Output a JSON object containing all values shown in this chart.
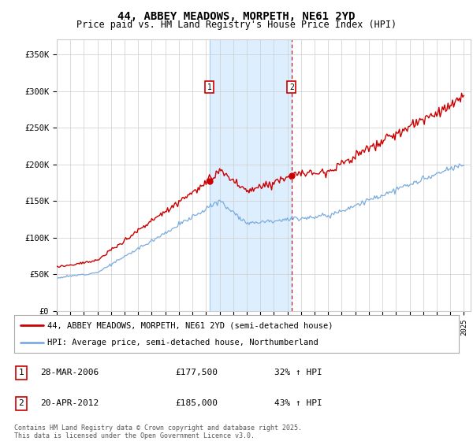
{
  "title": "44, ABBEY MEADOWS, MORPETH, NE61 2YD",
  "subtitle": "Price paid vs. HM Land Registry's House Price Index (HPI)",
  "legend_line1": "44, ABBEY MEADOWS, MORPETH, NE61 2YD (semi-detached house)",
  "legend_line2": "HPI: Average price, semi-detached house, Northumberland",
  "transaction1": {
    "num": "1",
    "date": "28-MAR-2006",
    "price": "£177,500",
    "change": "32% ↑ HPI"
  },
  "transaction2": {
    "num": "2",
    "date": "20-APR-2012",
    "price": "£185,000",
    "change": "43% ↑ HPI"
  },
  "footer": "Contains HM Land Registry data © Crown copyright and database right 2025.\nThis data is licensed under the Open Government Licence v3.0.",
  "red_color": "#cc0000",
  "blue_color": "#7aace0",
  "shading_color": "#ddeeff",
  "background_color": "#ffffff",
  "grid_color": "#cccccc",
  "ylim": [
    0,
    370000
  ],
  "yticks": [
    0,
    50000,
    100000,
    150000,
    200000,
    250000,
    300000,
    350000
  ],
  "ytick_labels": [
    "£0",
    "£50K",
    "£100K",
    "£150K",
    "£200K",
    "£250K",
    "£300K",
    "£350K"
  ],
  "year_start": 1995,
  "year_end": 2025,
  "transaction1_year": 2006.25,
  "transaction2_year": 2012.3,
  "transaction1_price": 177500,
  "transaction2_price": 185000
}
